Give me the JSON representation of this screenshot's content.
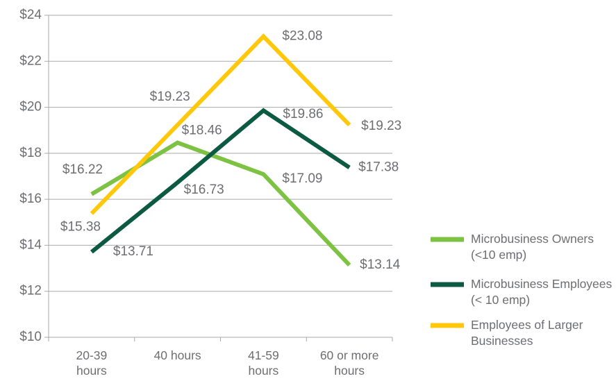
{
  "chart_data": {
    "type": "line",
    "categories": [
      "20-39 hours",
      "40 hours",
      "41-59 hours",
      "60 or more hours"
    ],
    "series": [
      {
        "name": "Microbusiness Owners (<10 emp)",
        "color": "#7dc242",
        "values": [
          16.22,
          18.46,
          17.09,
          13.14
        ],
        "value_labels": [
          "$16.22",
          "$18.46",
          "$17.09",
          "$13.14"
        ]
      },
      {
        "name": "Microbusiness Employees (< 10 emp)",
        "color": "#0c5a42",
        "values": [
          13.71,
          16.73,
          19.86,
          17.38
        ],
        "value_labels": [
          "$13.71",
          "$16.73",
          "$19.86",
          "$17.38"
        ]
      },
      {
        "name": "Employees of Larger Businesses",
        "color": "#ffc80a",
        "values": [
          15.38,
          19.23,
          23.08,
          19.23
        ],
        "value_labels": [
          "$15.38",
          "$19.23",
          "$23.08",
          "$19.23"
        ]
      }
    ],
    "ylim": [
      10,
      24
    ],
    "yticks": [
      {
        "value": 10,
        "label": "$10"
      },
      {
        "value": 12,
        "label": "$12"
      },
      {
        "value": 14,
        "label": "$14"
      },
      {
        "value": 16,
        "label": "$16"
      },
      {
        "value": 18,
        "label": "$18"
      },
      {
        "value": 20,
        "label": "$20"
      },
      {
        "value": 22,
        "label": "$22"
      },
      {
        "value": 24,
        "label": "$24"
      }
    ],
    "grid": true,
    "legend": "right"
  }
}
